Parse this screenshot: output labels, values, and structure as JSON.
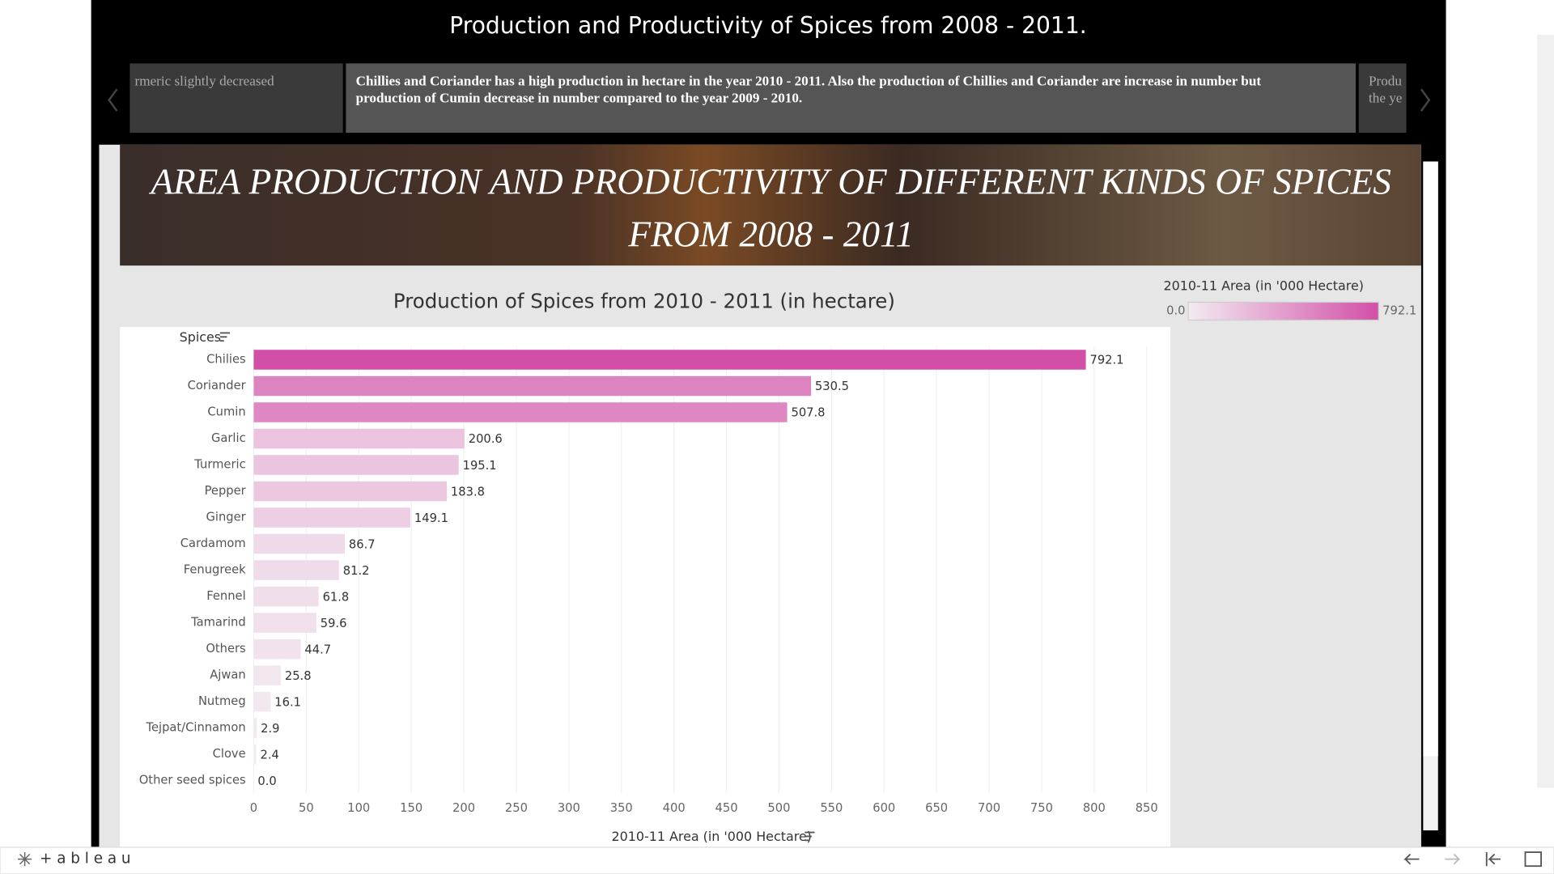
{
  "story": {
    "title": "Production and Productivity of Spices from 2008 - 2011.",
    "captions": [
      {
        "lines": [
          "rmeric slightly decreased"
        ]
      },
      {
        "lines": [
          "Chillies and Coriander has a high production  in hectare  in the year  2010 - 2011. Also the production of Chillies and Coriander are increase in number but",
          "production of Cumin decrease in number compared to the year 2009 - 2010."
        ]
      },
      {
        "lines": [
          "Produ",
          "the ye"
        ]
      }
    ]
  },
  "banner": {
    "lines": [
      "AREA PRODUCTION AND PRODUCTIVITY OF DIFFERENT KINDS OF SPICES",
      "FROM 2008 - 2011"
    ]
  },
  "chart_data": {
    "type": "hbar",
    "title": "Production of Spices from 2010 - 2011 (in hectare)",
    "y_label": "Spices",
    "x_label": "2010-11 Area (in '000 Hectare)",
    "categories": [
      "Chilies",
      "Coriander",
      "Cumin",
      "Garlic",
      "Turmeric",
      "Pepper",
      "Ginger",
      "Cardamom",
      "Fenugreek",
      "Fennel",
      "Tamarind",
      "Others",
      "Ajwan",
      "Nutmeg",
      "Tejpat/Cinnamon",
      "Clove",
      "Other seed spices"
    ],
    "values": [
      792.1,
      530.5,
      507.8,
      200.6,
      195.1,
      183.8,
      149.1,
      86.7,
      81.2,
      61.8,
      59.6,
      44.7,
      25.8,
      16.1,
      2.9,
      2.4,
      0
    ],
    "value_labels": [
      "792.1",
      "530.5",
      "507.8",
      "200.6",
      "195.1",
      "183.8",
      "149.1",
      "86.7",
      "81.2",
      "61.8",
      "59.6",
      "44.7",
      "25.8",
      "16.1",
      "2.9",
      "2.4",
      "0.0"
    ],
    "xlim": [
      0,
      870
    ],
    "xticks": [
      0,
      50,
      100,
      150,
      200,
      250,
      300,
      350,
      400,
      450,
      500,
      550,
      600,
      650,
      700,
      750,
      800,
      850
    ],
    "grid": true,
    "color_range": [
      "#f3ebf1",
      "#d24fa8"
    ],
    "legend": {
      "title": "2010-11 Area (in '000 Hectare)",
      "ticks": [
        {
          "value": 0,
          "label": "0.0"
        },
        {
          "value": 792.1,
          "label": "792.1"
        }
      ]
    }
  },
  "footer": {
    "brand": "+ a b l e a u"
  }
}
